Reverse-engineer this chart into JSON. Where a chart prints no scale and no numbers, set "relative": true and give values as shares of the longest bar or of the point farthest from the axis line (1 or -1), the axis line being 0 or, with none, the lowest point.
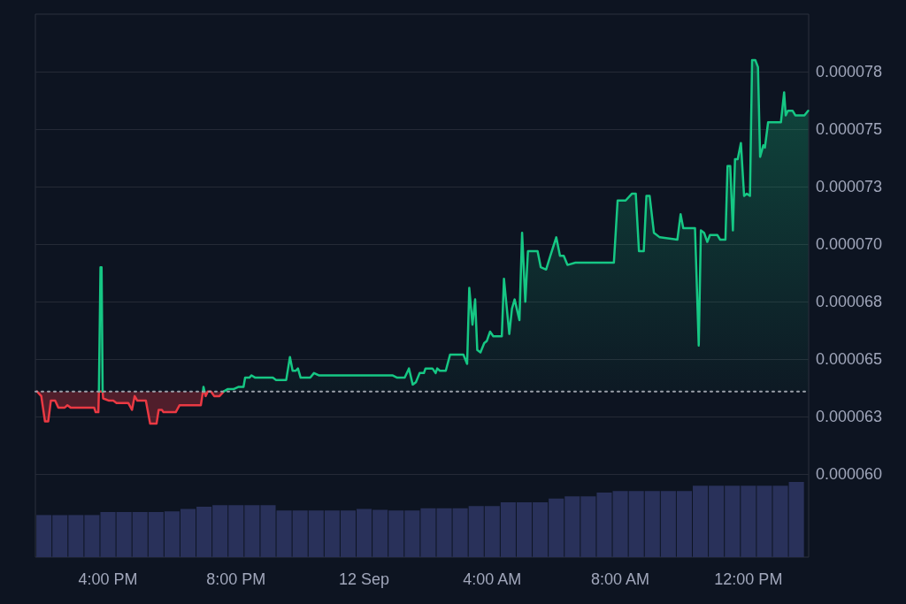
{
  "chart_data": [
    {
      "type": "area",
      "series": [
        {
          "color": "#ea3943",
          "x": [
            "--09-11T13:47",
            "--09-11T13:55",
            "--09-11T14:02",
            "--09-11T14:08",
            "--09-11T14:13",
            "--09-11T14:21",
            "--09-11T14:27",
            "--09-11T14:39",
            "--09-11T14:44",
            "--09-11T14:50",
            "--09-11T15:18",
            "--09-11T15:34",
            "--09-11T15:37",
            "--09-11T15:42",
            "--09-11T15:43",
            "--09-11T15:50",
            "--09-11T15:51",
            "--09-11T16:02",
            "--09-11T16:10",
            "--09-11T16:16",
            "--09-11T16:38",
            "--09-11T16:45",
            "--09-11T16:50",
            "--09-11T16:55",
            "--09-11T17:11",
            "--09-11T17:19",
            "--09-11T17:31",
            "--09-11T17:35",
            "--09-11T17:41",
            "--09-11T17:44",
            "--09-11T17:53",
            "--09-11T18:07",
            "--09-11T18:14",
            "--09-11T18:54",
            "--09-11T18:58",
            "--09-11T19:01",
            "--09-11T19:03",
            "--09-11T19:07",
            "--09-11T19:13",
            "--09-11T19:19",
            "--09-11T19:29",
            "--09-11T19:37"
          ],
          "values": [
            6.36e-05,
            6.34e-05,
            6.23e-05,
            6.23e-05,
            6.32e-05,
            6.32e-05,
            6.29e-05,
            6.29e-05,
            6.3e-05,
            6.29e-05,
            6.29e-05,
            6.29e-05,
            6.27e-05,
            6.27e-05,
            6.36e-05,
            6.36e-05,
            6.33e-05,
            6.32e-05,
            6.32e-05,
            6.31e-05,
            6.31e-05,
            6.28e-05,
            6.34e-05,
            6.32e-05,
            6.32e-05,
            6.22e-05,
            6.22e-05,
            6.28e-05,
            6.28e-05,
            6.27e-05,
            6.27e-05,
            6.27e-05,
            6.3e-05,
            6.3e-05,
            6.36e-05,
            6.36e-05,
            6.34e-05,
            6.36e-05,
            6.36e-05,
            6.34e-05,
            6.34e-05,
            6.36e-05
          ]
        },
        {
          "color": "#16c784",
          "x": [
            "--09-11T15:43",
            "--09-11T15:46",
            "--09-11T15:48",
            "--09-11T15:50"
          ],
          "values": [
            6.36e-05,
            6.9e-05,
            6.9e-05,
            6.36e-05
          ]
        },
        {
          "type": "line",
          "color": "#16c784",
          "x": [
            "--09-11T18:58",
            "--09-11T18:59",
            "--09-11T19:01"
          ],
          "values": [
            6.36e-05,
            6.38e-05,
            6.36e-05
          ]
        },
        {
          "color": "#16c784",
          "x": [
            "--09-11T19:37",
            "--09-11T19:44",
            "--09-11T19:55",
            "--09-11T20:05",
            "--09-11T20:14",
            "--09-11T20:17",
            "--09-11T20:25",
            "--09-11T20:29",
            "--09-11T20:36",
            "--09-11T21:09",
            "--09-11T21:15",
            "--09-11T21:34",
            "--09-11T21:41",
            "--09-11T21:46",
            "--09-11T21:52",
            "--09-11T21:56",
            "--09-11T22:01",
            "--09-11T22:19",
            "--09-11T22:26",
            "--09-11T22:35",
            "--09-11T22:52",
            "--09-12T00:53",
            "--09-12T01:02",
            "--09-12T01:16",
            "--09-12T01:24",
            "--09-12T01:31",
            "--09-12T01:37",
            "--09-12T01:44",
            "--09-12T01:52",
            "--09-12T01:55",
            "--09-12T02:08",
            "--09-12T02:14",
            "--09-12T02:17",
            "--09-12T02:22",
            "--09-12T02:33",
            "--09-12T02:41",
            "--09-12T03:06",
            "--09-12T03:13",
            "--09-12T03:17",
            "--09-12T03:23",
            "--09-12T03:28",
            "--09-12T03:32",
            "--09-12T03:38",
            "--09-12T03:45",
            "--09-12T03:50",
            "--09-12T03:56",
            "--09-12T04:02",
            "--09-12T04:18",
            "--09-12T04:22",
            "--09-12T04:32",
            "--09-12T04:37",
            "--09-12T04:42",
            "--09-12T04:51",
            "--09-12T04:56",
            "--09-12T05:02",
            "--09-12T05:07",
            "--09-12T05:25",
            "--09-12T05:31",
            "--09-12T05:41",
            "--09-12T05:49",
            "--09-12T06:00",
            "--09-12T06:07",
            "--09-12T06:14",
            "--09-12T06:21",
            "--09-12T06:36",
            "--09-12T07:48",
            "--09-12T07:55",
            "--09-12T08:02",
            "--09-12T08:10",
            "--09-12T08:22",
            "--09-12T08:29",
            "--09-12T08:35",
            "--09-12T08:44",
            "--09-12T08:49",
            "--09-12T08:55",
            "--09-12T09:03",
            "--09-12T09:14",
            "--09-12T09:47",
            "--09-12T09:53",
            "--09-12T09:58",
            "--09-12T10:20",
            "--09-12T10:27",
            "--09-12T10:31",
            "--09-12T10:37",
            "--09-12T10:43",
            "--09-12T10:48",
            "--09-12T11:02",
            "--09-12T11:07",
            "--09-12T11:17",
            "--09-12T11:21",
            "--09-12T11:26",
            "--09-12T11:31",
            "--09-12T11:35",
            "--09-12T11:40",
            "--09-12T11:46",
            "--09-12T11:52",
            "--09-12T11:57",
            "--09-12T12:03",
            "--09-12T12:07",
            "--09-12T12:13",
            "--09-12T12:18",
            "--09-12T12:22",
            "--09-12T12:28",
            "--09-12T12:31",
            "--09-12T12:37",
            "--09-12T12:44",
            "--09-12T13:01",
            "--09-12T13:07",
            "--09-12T13:10",
            "--09-12T13:14",
            "--09-12T13:23",
            "--09-12T13:28",
            "--09-12T13:45",
            "--09-12T13:52"
          ],
          "values": [
            6.36e-05,
            6.37e-05,
            6.37e-05,
            6.38e-05,
            6.38e-05,
            6.42e-05,
            6.42e-05,
            6.43e-05,
            6.42e-05,
            6.42e-05,
            6.41e-05,
            6.41e-05,
            6.51e-05,
            6.45e-05,
            6.45e-05,
            6.46e-05,
            6.42e-05,
            6.42e-05,
            6.44e-05,
            6.43e-05,
            6.43e-05,
            6.43e-05,
            6.42e-05,
            6.42e-05,
            6.46e-05,
            6.39e-05,
            6.4e-05,
            6.44e-05,
            6.44e-05,
            6.46e-05,
            6.46e-05,
            6.44e-05,
            6.46e-05,
            6.45e-05,
            6.45e-05,
            6.52e-05,
            6.52e-05,
            6.48e-05,
            6.81e-05,
            6.65e-05,
            6.76e-05,
            6.54e-05,
            6.53e-05,
            6.57e-05,
            6.58e-05,
            6.62e-05,
            6.6e-05,
            6.6e-05,
            6.85e-05,
            6.61e-05,
            6.72e-05,
            6.76e-05,
            6.67e-05,
            7.05e-05,
            6.75e-05,
            6.97e-05,
            6.97e-05,
            6.9e-05,
            6.89e-05,
            6.95e-05,
            7.03e-05,
            6.95e-05,
            6.95e-05,
            6.91e-05,
            6.92e-05,
            6.92e-05,
            7.19e-05,
            7.19e-05,
            7.19e-05,
            7.22e-05,
            7.22e-05,
            6.97e-05,
            6.97e-05,
            7.21e-05,
            7.21e-05,
            7.05e-05,
            7.03e-05,
            7.02e-05,
            7.13e-05,
            7.07e-05,
            7.07e-05,
            6.56e-05,
            7.06e-05,
            7.05e-05,
            7.01e-05,
            7.04e-05,
            7.04e-05,
            7.02e-05,
            7.02e-05,
            7.34e-05,
            7.34e-05,
            7.06e-05,
            7.37e-05,
            7.37e-05,
            7.44e-05,
            7.21e-05,
            7.22e-05,
            7.21e-05,
            7.8e-05,
            7.8e-05,
            7.77e-05,
            7.38e-05,
            7.43e-05,
            7.42e-05,
            7.53e-05,
            7.53e-05,
            7.53e-05,
            7.66e-05,
            7.56e-05,
            7.58e-05,
            7.58e-05,
            7.56e-05,
            7.56e-05,
            7.58e-05
          ]
        }
      ],
      "xlim": [
        "--09-11T13:44",
        "--09-12T13:53"
      ],
      "ylim": [
        5.64e-05,
        8e-05
      ],
      "yticks": [
        {
          "value": 6e-05,
          "label": "0.000060"
        },
        {
          "value": 6.25e-05,
          "label": "0.000063"
        },
        {
          "value": 6.5e-05,
          "label": "0.000065"
        },
        {
          "value": 6.75e-05,
          "label": "0.000068"
        },
        {
          "value": 7e-05,
          "label": "0.000070"
        },
        {
          "value": 7.25e-05,
          "label": "0.000073"
        },
        {
          "value": 7.5e-05,
          "label": "0.000075"
        },
        {
          "value": 7.75e-05,
          "label": "0.000078"
        }
      ],
      "ref_lines": [
        {
          "axis": "y",
          "value": 6.36e-05,
          "line_style": "dotted",
          "color": "#9ca1ab"
        }
      ],
      "grid": "y",
      "tick_labels": "y"
    },
    {
      "type": "bar",
      "relative": true,
      "color": "#29315a",
      "x": [
        "--09-11T14:00",
        "--09-11T14:30",
        "--09-11T15:00",
        "--09-11T15:30",
        "--09-11T16:00",
        "--09-11T16:30",
        "--09-11T17:00",
        "--09-11T17:30",
        "--09-11T18:00",
        "--09-11T18:30",
        "--09-11T19:00",
        "--09-11T19:30",
        "--09-11T20:00",
        "--09-11T20:30",
        "--09-11T21:00",
        "--09-11T21:30",
        "--09-11T22:00",
        "--09-11T22:30",
        "--09-11T23:00",
        "--09-11T23:30",
        "--09-12T00:00",
        "--09-12T00:30",
        "--09-12T01:00",
        "--09-12T01:30",
        "--09-12T02:00",
        "--09-12T02:30",
        "--09-12T03:00",
        "--09-12T03:30",
        "--09-12T04:00",
        "--09-12T04:30",
        "--09-12T05:00",
        "--09-12T05:30",
        "--09-12T06:00",
        "--09-12T06:30",
        "--09-12T07:00",
        "--09-12T07:30",
        "--09-12T08:00",
        "--09-12T08:30",
        "--09-12T09:00",
        "--09-12T09:30",
        "--09-12T10:00",
        "--09-12T10:30",
        "--09-12T11:00",
        "--09-12T11:30",
        "--09-12T12:00",
        "--09-12T12:30",
        "--09-12T13:00",
        "--09-12T13:30"
      ],
      "values": [
        0.56,
        0.56,
        0.56,
        0.56,
        0.6,
        0.6,
        0.6,
        0.6,
        0.61,
        0.64,
        0.67,
        0.69,
        0.69,
        0.69,
        0.69,
        0.62,
        0.62,
        0.62,
        0.62,
        0.62,
        0.64,
        0.63,
        0.62,
        0.62,
        0.65,
        0.65,
        0.65,
        0.68,
        0.68,
        0.73,
        0.73,
        0.73,
        0.78,
        0.81,
        0.81,
        0.86,
        0.88,
        0.88,
        0.88,
        0.88,
        0.88,
        0.95,
        0.95,
        0.95,
        0.95,
        0.95,
        0.95,
        1
      ],
      "xlim": [
        "--09-11T13:44",
        "--09-12T13:53"
      ],
      "xticks": [
        {
          "value": "--09-11T16:00",
          "label": "4:00 PM"
        },
        {
          "value": "--09-11T20:00",
          "label": "8:00 PM"
        },
        {
          "value": "--09-12T00:00",
          "label": "12 Sep"
        },
        {
          "value": "--09-12T04:00",
          "label": "4:00 AM"
        },
        {
          "value": "--09-12T08:00",
          "label": "8:00 AM"
        },
        {
          "value": "--09-12T12:00",
          "label": "12:00 PM"
        }
      ],
      "tick_labels": "x"
    }
  ]
}
